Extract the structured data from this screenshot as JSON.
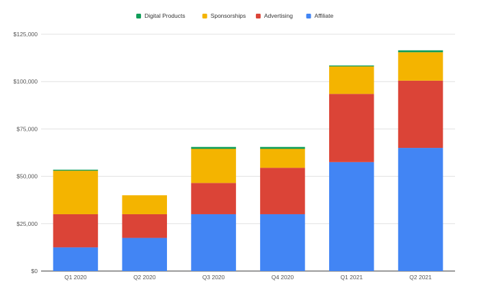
{
  "chart_data": {
    "type": "bar",
    "stacked": true,
    "categories": [
      "Q1 2020",
      "Q2 2020",
      "Q3 2020",
      "Q4 2020",
      "Q1 2021",
      "Q2 2021"
    ],
    "series": [
      {
        "name": "Affiliate",
        "color": "#4285F4",
        "values": [
          12500,
          17500,
          30000,
          30000,
          57500,
          65000
        ]
      },
      {
        "name": "Advertising",
        "color": "#DB4437",
        "values": [
          17500,
          12500,
          16500,
          24500,
          36000,
          35500
        ]
      },
      {
        "name": "Sponsorships",
        "color": "#F4B400",
        "values": [
          23000,
          10000,
          18000,
          10000,
          14500,
          15000
        ]
      },
      {
        "name": "Digital Products",
        "color": "#0F9D58",
        "values": [
          500,
          0,
          1000,
          1000,
          500,
          1000
        ]
      }
    ],
    "legend_order": [
      "Digital Products",
      "Sponsorships",
      "Advertising",
      "Affiliate"
    ],
    "legend_position": "top",
    "y_ticks": [
      "$0",
      "$25,000",
      "$50,000",
      "$75,000",
      "$100,000",
      "$125,000"
    ],
    "ylim": [
      0,
      125000
    ],
    "title": "",
    "xlabel": "",
    "ylabel": "",
    "grid": true
  }
}
